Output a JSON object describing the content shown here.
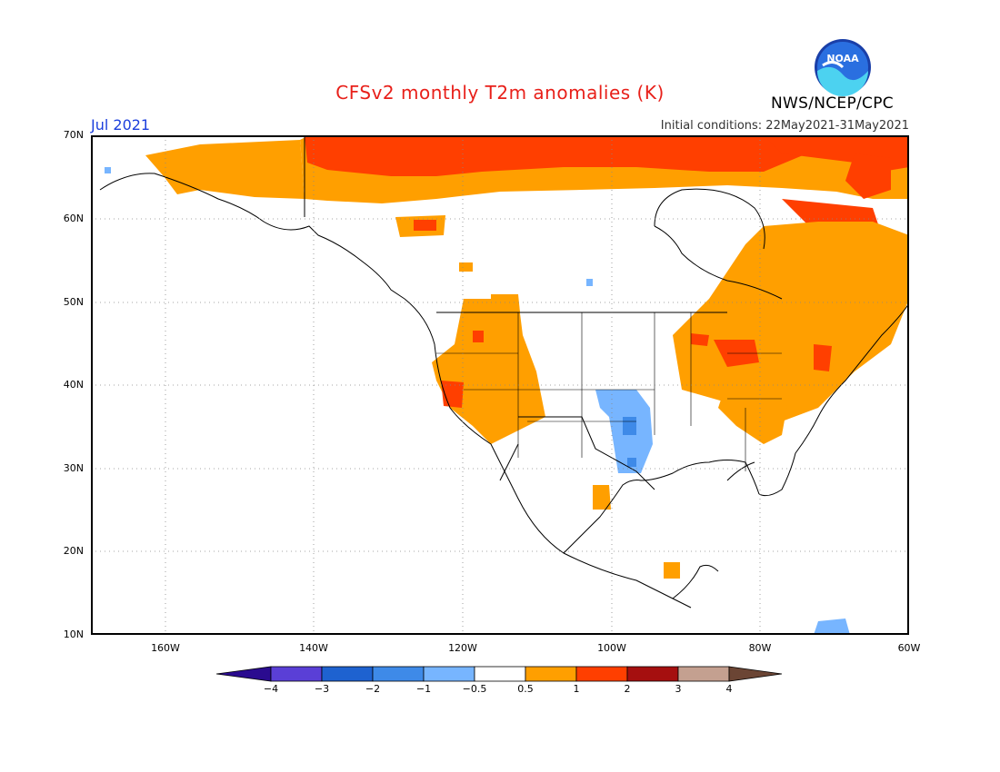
{
  "title": "CFSv2 monthly T2m anomalies (K)",
  "valid_month": "Jul 2021",
  "initial_conditions": "Initial conditions: 22May2021-31May2021",
  "agency": "NWS/NCEP/CPC",
  "logo_text": "NOAA",
  "map": {
    "lat_range": [
      10,
      70
    ],
    "lon_range": [
      -170,
      -60
    ],
    "lat_labels": [
      "70N",
      "60N",
      "50N",
      "40N",
      "30N",
      "20N",
      "10N"
    ],
    "lon_labels": [
      "160W",
      "140W",
      "120W",
      "100W",
      "80W",
      "60W"
    ],
    "anomaly_regions": [
      {
        "name": "Arctic Alaska/Yukon coast",
        "level": "0.5-1",
        "color": "#ff9f00"
      },
      {
        "name": "Northern Canada / Arctic Archipelago",
        "level": "1-2",
        "color": "#ff3f00"
      },
      {
        "name": "Great Lakes",
        "level": "1-2",
        "color": "#ff3f00"
      },
      {
        "name": "Eastern Canada / Northeast US",
        "level": "0.5-1",
        "color": "#ff9f00"
      },
      {
        "name": "Great Basin / California",
        "level": "0.5-1",
        "color": "#ff9f00"
      },
      {
        "name": "Southern Plains (Oklahoma/Texas)",
        "level": "-1 to -0.5",
        "color": "#77b5ff"
      }
    ]
  },
  "colorbar": {
    "labels": [
      "−4",
      "−3",
      "−2",
      "−1",
      "−0.5",
      "0.5",
      "1",
      "2",
      "3",
      "4"
    ],
    "colors": [
      "#2a0b8f",
      "#5a3fd6",
      "#1e62d0",
      "#3e8ae8",
      "#77b5ff",
      "#ffffff",
      "#ff9f00",
      "#ff3f00",
      "#a50f0f",
      "#c4a090",
      "#6b4534"
    ]
  }
}
